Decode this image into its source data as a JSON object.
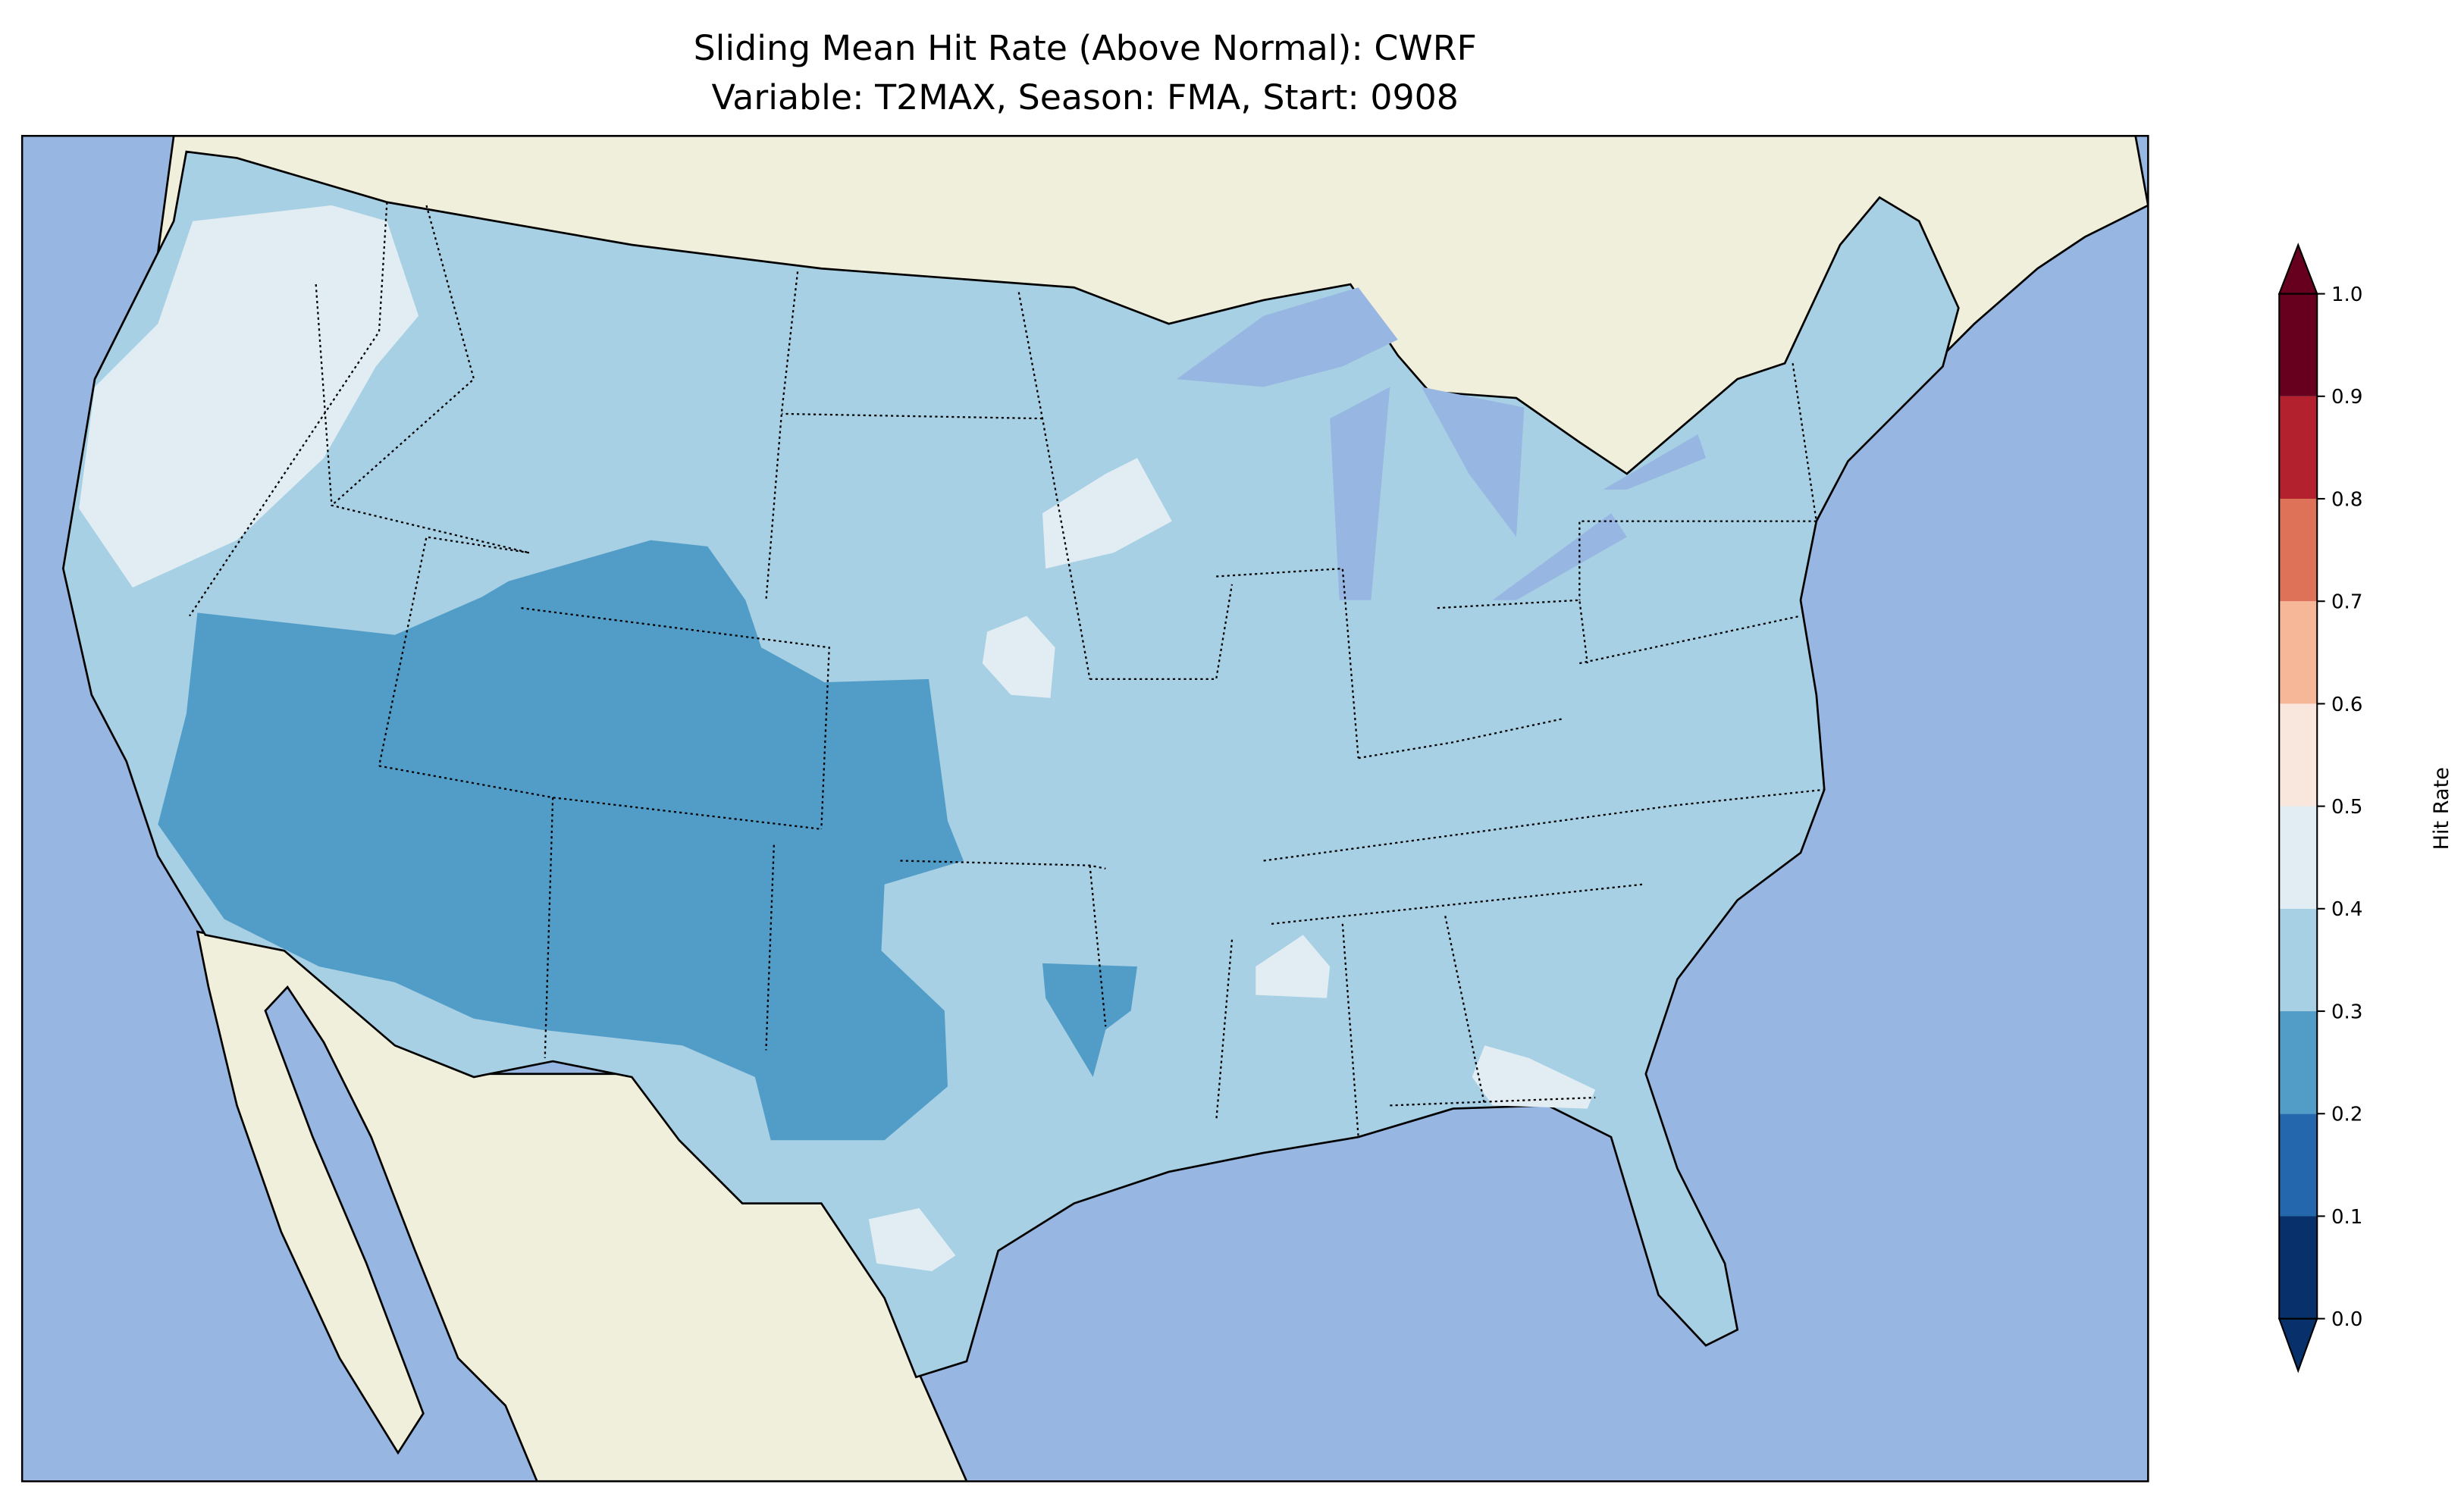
{
  "chart_data": {
    "type": "heatmap",
    "title": "Sliding Mean Hit Rate (Above Normal): CWRF",
    "subtitle": "Variable: T2MAX, Season: FMA, Start: 0908",
    "colorbar": {
      "label": "Hit Rate",
      "range": [
        0.0,
        1.0
      ],
      "extend": "both",
      "ticks": [
        "0.0",
        "0.1",
        "0.2",
        "0.3",
        "0.4",
        "0.5",
        "0.6",
        "0.7",
        "0.8",
        "0.9",
        "1.0"
      ],
      "bins": [
        {
          "from": 0.0,
          "to": 0.1,
          "color": "#08306b"
        },
        {
          "from": 0.1,
          "to": 0.2,
          "color": "#2467ad"
        },
        {
          "from": 0.2,
          "to": 0.3,
          "color": "#529dc8"
        },
        {
          "from": 0.3,
          "to": 0.4,
          "color": "#a7d0e4"
        },
        {
          "from": 0.4,
          "to": 0.5,
          "color": "#e1edf3"
        },
        {
          "from": 0.5,
          "to": 0.6,
          "color": "#f9e6dd"
        },
        {
          "from": 0.6,
          "to": 0.7,
          "color": "#f6b799"
        },
        {
          "from": 0.7,
          "to": 0.8,
          "color": "#de7259"
        },
        {
          "from": 0.8,
          "to": 0.9,
          "color": "#b2212d"
        },
        {
          "from": 0.9,
          "to": 1.0,
          "color": "#67001f"
        }
      ]
    },
    "regions": [
      {
        "name": "most of CONUS",
        "bin": "0.3-0.4"
      },
      {
        "name": "Southwest / Four Corners / W Texas / W Kansas",
        "bin": "0.2-0.3"
      },
      {
        "name": "Pacific Northwest / N California",
        "bin": "0.4-0.5"
      },
      {
        "name": "isolated spots (NE, IA, MS, GA, S Texas)",
        "bin": "0.4-0.5"
      }
    ],
    "colors": {
      "ocean": "#97b6e1",
      "land": "#efefdb"
    }
  }
}
